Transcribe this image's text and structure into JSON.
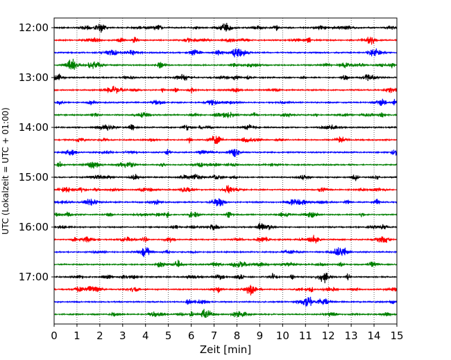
{
  "chart_data": {
    "type": "line",
    "title": "",
    "xlabel": "Zeit  [min]",
    "ylabel": "UTC (Lokalzeit = UTC + 01:00)",
    "xlim": [
      0,
      15
    ],
    "x_ticks": [
      0,
      1,
      2,
      3,
      4,
      5,
      6,
      7,
      8,
      9,
      10,
      11,
      12,
      13,
      14,
      15
    ],
    "x_tick_labels": [
      "0",
      "1",
      "2",
      "3",
      "4",
      "5",
      "6",
      "7",
      "8",
      "9",
      "10",
      "11",
      "12",
      "13",
      "14",
      "15"
    ],
    "y_tick_labels": [
      "12:00",
      "13:00",
      "14:00",
      "15:00",
      "16:00",
      "17:00"
    ],
    "y_tick_rows": [
      0,
      4,
      8,
      12,
      16,
      20
    ],
    "rows_per_hour": 4,
    "row_interval_min": 15,
    "trace_count": 24,
    "trace_colors": [
      "#000000",
      "#ff0000",
      "#0000ff",
      "#008000"
    ],
    "vertical_grid": "dotted, every 1 min",
    "legend": "none"
  }
}
